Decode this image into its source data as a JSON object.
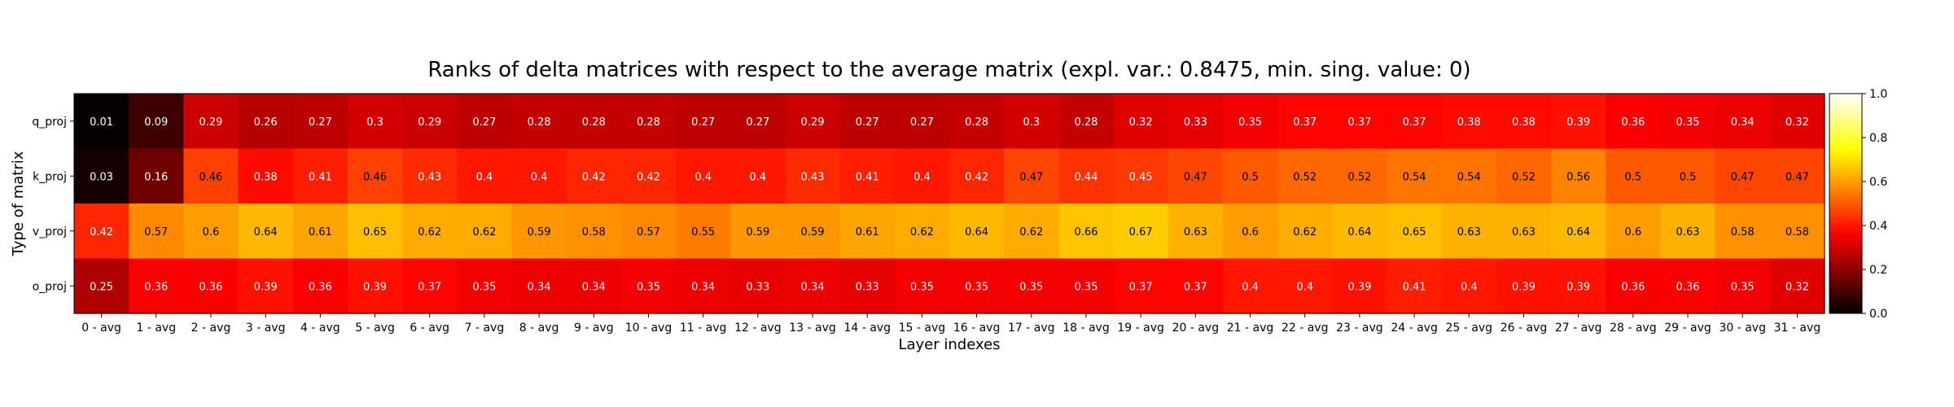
{
  "chart_data": {
    "type": "heatmap",
    "title": "Ranks of delta matrices with respect to the average matrix (expl. var.: 0.8475, min. sing. value: 0)",
    "xlabel": "Layer indexes",
    "ylabel": "Type of matrix",
    "x_categories": [
      "0 - avg",
      "1 - avg",
      "2 - avg",
      "3 - avg",
      "4 - avg",
      "5 - avg",
      "6 - avg",
      "7 - avg",
      "8 - avg",
      "9 - avg",
      "10 - avg",
      "11 - avg",
      "12 - avg",
      "13 - avg",
      "14 - avg",
      "15 - avg",
      "16 - avg",
      "17 - avg",
      "18 - avg",
      "19 - avg",
      "20 - avg",
      "21 - avg",
      "22 - avg",
      "23 - avg",
      "24 - avg",
      "25 - avg",
      "26 - avg",
      "27 - avg",
      "28 - avg",
      "29 - avg",
      "30 - avg",
      "31 - avg"
    ],
    "y_categories": [
      "q_proj",
      "k_proj",
      "v_proj",
      "o_proj"
    ],
    "values": [
      [
        0.01,
        0.09,
        0.29,
        0.26,
        0.27,
        0.3,
        0.29,
        0.27,
        0.28,
        0.28,
        0.28,
        0.27,
        0.27,
        0.29,
        0.27,
        0.27,
        0.28,
        0.3,
        0.28,
        0.32,
        0.33,
        0.35,
        0.37,
        0.37,
        0.37,
        0.38,
        0.38,
        0.39,
        0.36,
        0.35,
        0.34,
        0.32
      ],
      [
        0.03,
        0.16,
        0.46,
        0.38,
        0.41,
        0.46,
        0.43,
        0.4,
        0.4,
        0.42,
        0.42,
        0.4,
        0.4,
        0.43,
        0.41,
        0.4,
        0.42,
        0.47,
        0.44,
        0.45,
        0.47,
        0.5,
        0.52,
        0.52,
        0.54,
        0.54,
        0.52,
        0.56,
        0.5,
        0.5,
        0.47,
        0.47
      ],
      [
        0.42,
        0.57,
        0.6,
        0.64,
        0.61,
        0.65,
        0.62,
        0.62,
        0.59,
        0.58,
        0.57,
        0.55,
        0.59,
        0.59,
        0.61,
        0.62,
        0.64,
        0.62,
        0.66,
        0.67,
        0.63,
        0.6,
        0.62,
        0.64,
        0.65,
        0.63,
        0.63,
        0.64,
        0.6,
        0.63,
        0.58,
        0.58
      ],
      [
        0.25,
        0.36,
        0.36,
        0.39,
        0.36,
        0.39,
        0.37,
        0.35,
        0.34,
        0.34,
        0.35,
        0.34,
        0.33,
        0.34,
        0.33,
        0.35,
        0.35,
        0.35,
        0.35,
        0.37,
        0.37,
        0.4,
        0.4,
        0.39,
        0.41,
        0.4,
        0.39,
        0.39,
        0.36,
        0.36,
        0.35,
        0.32
      ]
    ],
    "colormap": "hot",
    "colorbar": {
      "range": [
        0.0,
        1.0
      ],
      "ticks": [
        0.0,
        0.2,
        0.4,
        0.6,
        0.8,
        1.0
      ],
      "tick_labels": [
        "0.0",
        "0.2",
        "0.4",
        "0.6",
        "0.8",
        "1.0"
      ]
    },
    "grid": false,
    "show_cell_values": true
  }
}
